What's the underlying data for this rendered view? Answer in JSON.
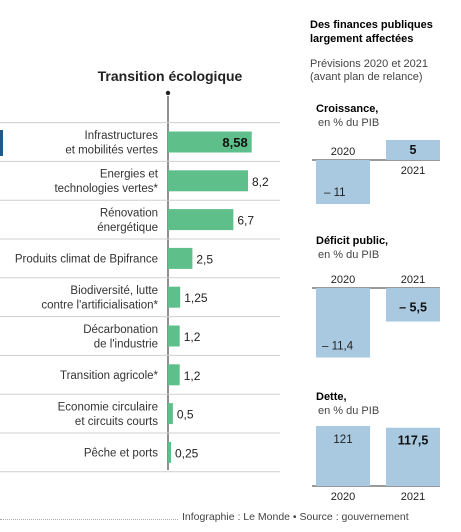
{
  "chart_data": [
    {
      "type": "bar",
      "orientation": "horizontal",
      "title": "Transition écologique",
      "categories": [
        [
          "Infrastructures",
          "et mobilités vertes"
        ],
        [
          "Energies et",
          "technologies vertes*"
        ],
        [
          "Rénovation",
          "énergétique"
        ],
        [
          "Produits climat de Bpifrance"
        ],
        [
          "Biodiversité, lutte",
          "contre l'artificialisation*"
        ],
        [
          "Décarbonation",
          "de l'industrie"
        ],
        [
          "Transition agricole*"
        ],
        [
          "Economie circulaire",
          "et circuits courts"
        ],
        [
          "Pêche et ports"
        ]
      ],
      "values": [
        8.58,
        8.2,
        6.7,
        2.5,
        1.25,
        1.2,
        1.2,
        0.5,
        0.25
      ],
      "value_labels": [
        "8,58",
        "8,2",
        "6,7",
        "2,5",
        "1,25",
        "1,2",
        "1,2",
        "0,5",
        "0,25"
      ],
      "highlight_index": 0,
      "color": "#5fbf8a",
      "xlim": [
        0,
        9
      ]
    },
    {
      "type": "bar",
      "title": "Croissance,",
      "subtitle": "en % du PIB",
      "categories": [
        "2020",
        "2021"
      ],
      "values": [
        -11,
        5
      ],
      "value_labels": [
        "– 11",
        "5"
      ],
      "color": "#a8c9e0"
    },
    {
      "type": "bar",
      "title": "Déficit public,",
      "subtitle": "en % du PIB",
      "categories": [
        "2020",
        "2021"
      ],
      "values": [
        -11.4,
        -5.5
      ],
      "value_labels": [
        "– 11,4",
        "– 5,5"
      ],
      "color": "#a8c9e0"
    },
    {
      "type": "bar",
      "title": "Dette,",
      "subtitle": "en % du PIB",
      "categories": [
        "2020",
        "2021"
      ],
      "values": [
        121,
        117.5
      ],
      "value_labels": [
        "121",
        "117,5"
      ],
      "color": "#a8c9e0"
    }
  ],
  "side_panel": {
    "heading": [
      "Des finances publiques",
      "largement affectées"
    ],
    "note": [
      "Prévisions 2020 et 2021",
      "(avant plan de relance)"
    ]
  },
  "footer": {
    "text": "Infographie : Le Monde  •  Source : gouvernement"
  }
}
